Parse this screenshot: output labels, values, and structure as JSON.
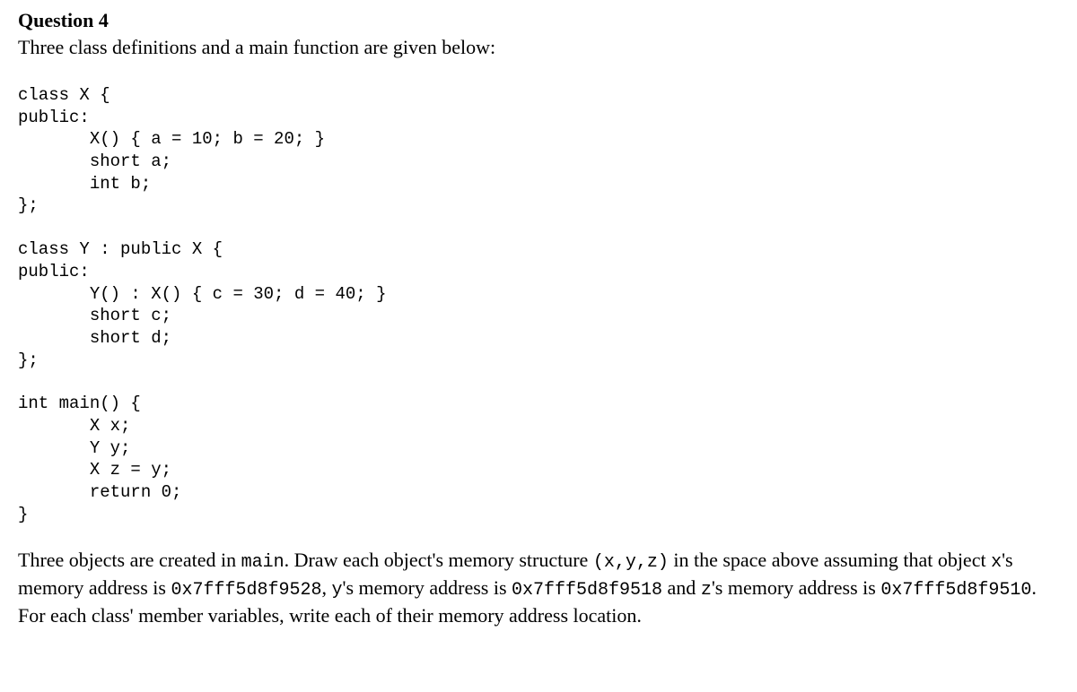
{
  "question": {
    "title": "Question 4",
    "intro": "Three class definitions and a main function are given below:"
  },
  "code": {
    "classX": "class X {\npublic:\n       X() { a = 10; b = 20; }\n       short a;\n       int b;\n};",
    "classY": "class Y : public X {\npublic:\n       Y() : X() { c = 30; d = 40; }\n       short c;\n       short d;\n};",
    "main": "int main() {\n       X x;\n       Y y;\n       X z = y;\n       return 0;\n}"
  },
  "prompt": {
    "part1": "Three objects are created in ",
    "mono1": "main",
    "part2": ". Draw each object's memory structure ",
    "mono2": "(x,y,z)",
    "part3": " in the space above assuming that object ",
    "mono3": "x",
    "part4": "'s memory address is ",
    "mono4": "0x7fff5d8f9528",
    "part5": ", ",
    "mono5": "y",
    "part6": "'s memory address is ",
    "mono6": "0x7fff5d8f9518",
    "part7": " and ",
    "mono7": "z",
    "part8": "'s memory address is ",
    "mono8": "0x7fff5d8f9510",
    "part9": ". For each class' member variables, write each of their memory address location."
  },
  "styling": {
    "background_color": "#ffffff",
    "text_color": "#000000",
    "title_fontsize": 22,
    "body_fontsize": 22,
    "code_fontsize": 19,
    "mono_fontsize": 20,
    "body_font": "Georgia, Times New Roman, serif",
    "code_font": "Courier New, monospace"
  }
}
